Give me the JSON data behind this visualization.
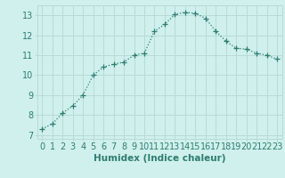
{
  "x": [
    0,
    1,
    2,
    3,
    4,
    5,
    6,
    7,
    8,
    9,
    10,
    11,
    12,
    13,
    14,
    15,
    16,
    17,
    18,
    19,
    20,
    21,
    22,
    23
  ],
  "y": [
    7.3,
    7.55,
    8.1,
    8.45,
    9.0,
    10.0,
    10.4,
    10.55,
    10.65,
    11.0,
    11.1,
    12.2,
    12.55,
    13.05,
    13.15,
    13.1,
    12.85,
    12.2,
    11.7,
    11.35,
    11.3,
    11.1,
    11.0,
    10.8
  ],
  "line_color": "#2e7d6e",
  "marker": "+",
  "marker_size": 4,
  "bg_color": "#cff0ec",
  "grid_color": "#b8dbd6",
  "xlabel": "Humidex (Indice chaleur)",
  "xlabel_fontsize": 7.5,
  "tick_fontsize": 7,
  "ylim": [
    6.8,
    13.5
  ],
  "xlim": [
    -0.5,
    23.5
  ],
  "yticks": [
    7,
    8,
    9,
    10,
    11,
    12,
    13
  ],
  "xticks": [
    0,
    1,
    2,
    3,
    4,
    5,
    6,
    7,
    8,
    9,
    10,
    11,
    12,
    13,
    14,
    15,
    16,
    17,
    18,
    19,
    20,
    21,
    22,
    23
  ]
}
